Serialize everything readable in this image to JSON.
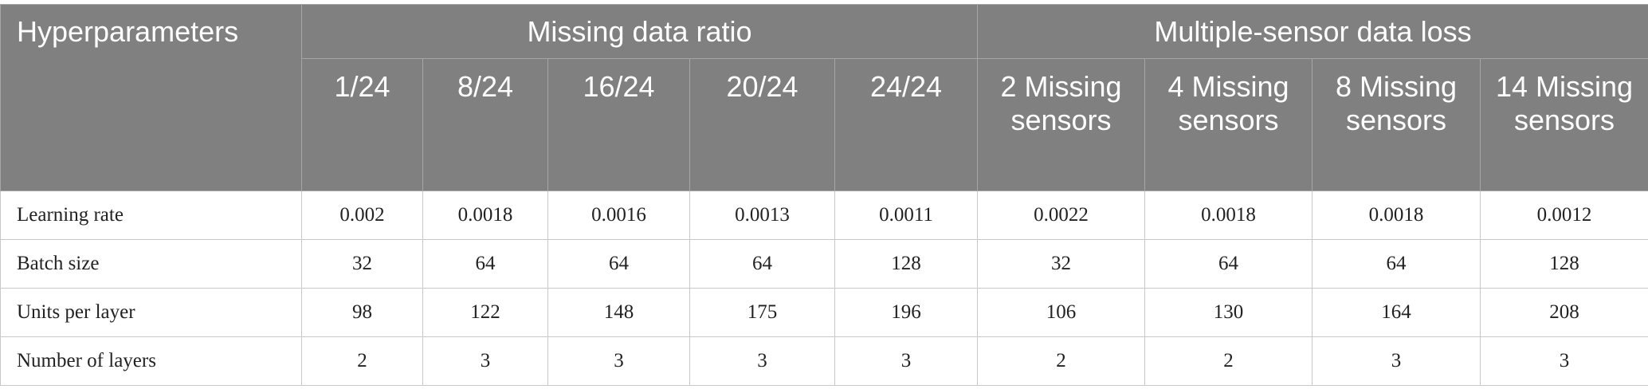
{
  "table": {
    "corner": "Hyperparameters",
    "groups": [
      {
        "label": "Missing data ratio",
        "columns": [
          "1/24",
          "8/24",
          "16/24",
          "20/24",
          "24/24"
        ]
      },
      {
        "label": "Multiple-sensor data loss",
        "columns": [
          "2 Missing sensors",
          "4 Missing sensors",
          "8 Missing sensors",
          "14 Missing sensors"
        ]
      }
    ],
    "rows": [
      [
        "Learning rate",
        "0.002",
        "0.0018",
        "0.0016",
        "0.0013",
        "0.0011",
        "0.0022",
        "0.0018",
        "0.0018",
        "0.0012"
      ],
      [
        "Batch size",
        "32",
        "64",
        "64",
        "64",
        "128",
        "32",
        "64",
        "64",
        "128"
      ],
      [
        "Units per layer",
        "98",
        "122",
        "148",
        "175",
        "196",
        "106",
        "130",
        "164",
        "208"
      ],
      [
        "Number of layers",
        "2",
        "3",
        "3",
        "3",
        "3",
        "2",
        "2",
        "3",
        "3"
      ]
    ]
  }
}
